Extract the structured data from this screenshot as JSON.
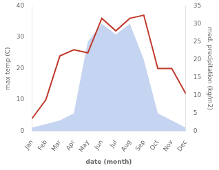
{
  "chart_data": {
    "type": "line",
    "categories": [
      "Jan",
      "Feb",
      "Mar",
      "Apr",
      "May",
      "Jun",
      "Jul",
      "Aug",
      "Sep",
      "Oct",
      "Nov",
      "Dec"
    ],
    "series": [
      {
        "type": "area",
        "axis": "y2",
        "color": "#c5d4f0",
        "values": [
          1,
          2,
          3,
          5,
          25,
          30,
          27,
          30,
          20,
          5,
          3,
          1
        ]
      },
      {
        "type": "line",
        "color": "#c0392b",
        "values": [
          4,
          10,
          24,
          26,
          25,
          36,
          32,
          36,
          37,
          20,
          20,
          12
        ]
      }
    ],
    "xlabel": "date (month)",
    "ylabel": "max temp (C)",
    "y2label": "med. precipitation (kg/m2)",
    "ylim": [
      0,
      40
    ],
    "yticks": [
      0,
      10,
      20,
      30,
      40
    ],
    "y2lim": [
      0,
      35
    ],
    "y2ticks": [
      0,
      5,
      10,
      15,
      20,
      25,
      30,
      35
    ],
    "grid": false
  }
}
